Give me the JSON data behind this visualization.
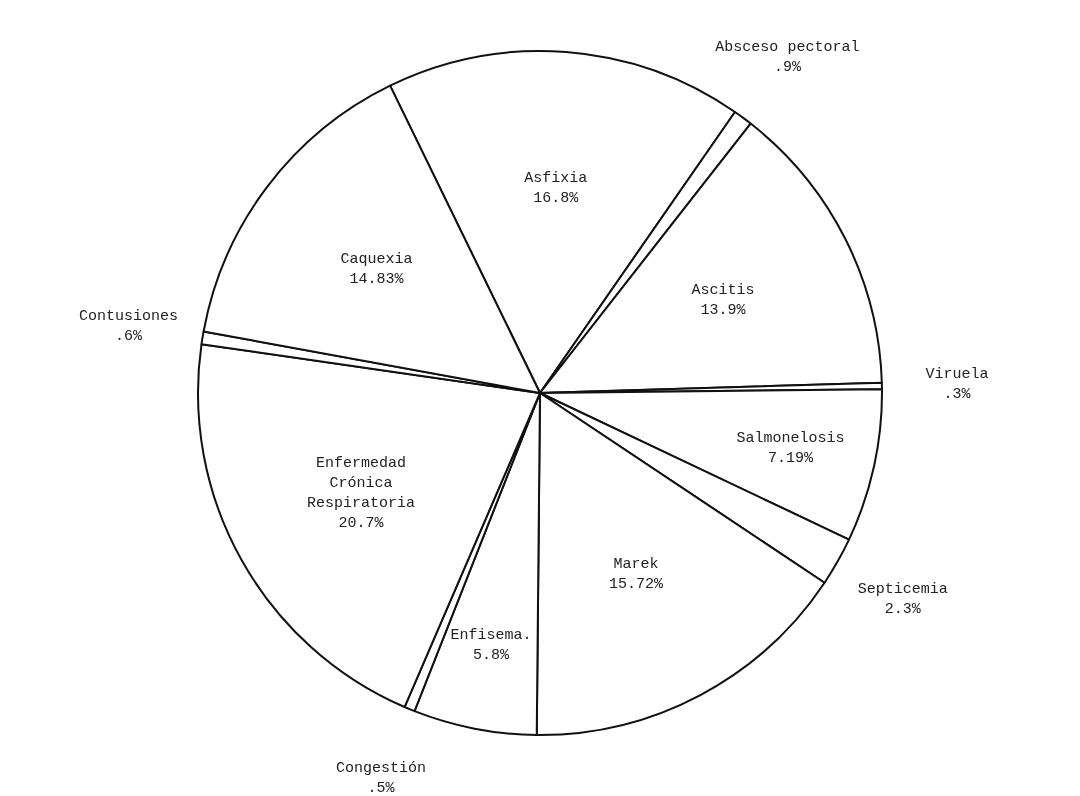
{
  "chart_data": {
    "type": "pie",
    "categories": [
      "Asfixia",
      "Absceso pectoral",
      "Ascitis",
      "Viruela",
      "Salmonelosis",
      "Septicemia",
      "Marek",
      "Enfisema.",
      "Congestión",
      "Enfermedad Crónica Respiratoria",
      "Contusiones",
      "Caquexia"
    ],
    "values": [
      16.8,
      0.9,
      13.9,
      0.3,
      7.19,
      2.3,
      15.72,
      5.8,
      0.5,
      20.7,
      0.6,
      14.83
    ],
    "value_labels": [
      "16.8%",
      ".9%",
      "13.9%",
      ".3%",
      "7.19%",
      "2.3%",
      "15.72%",
      "5.8%",
      ".5%",
      "20.7%",
      ".6%",
      "14.83%"
    ],
    "colors": [
      "#ffffff",
      "#ffffff",
      "#ffffff",
      "#ffffff",
      "#ffffff",
      "#ffffff",
      "#ffffff",
      "#ffffff",
      "#ffffff",
      "#ffffff",
      "#ffffff",
      "#ffffff"
    ],
    "legend": false
  }
}
